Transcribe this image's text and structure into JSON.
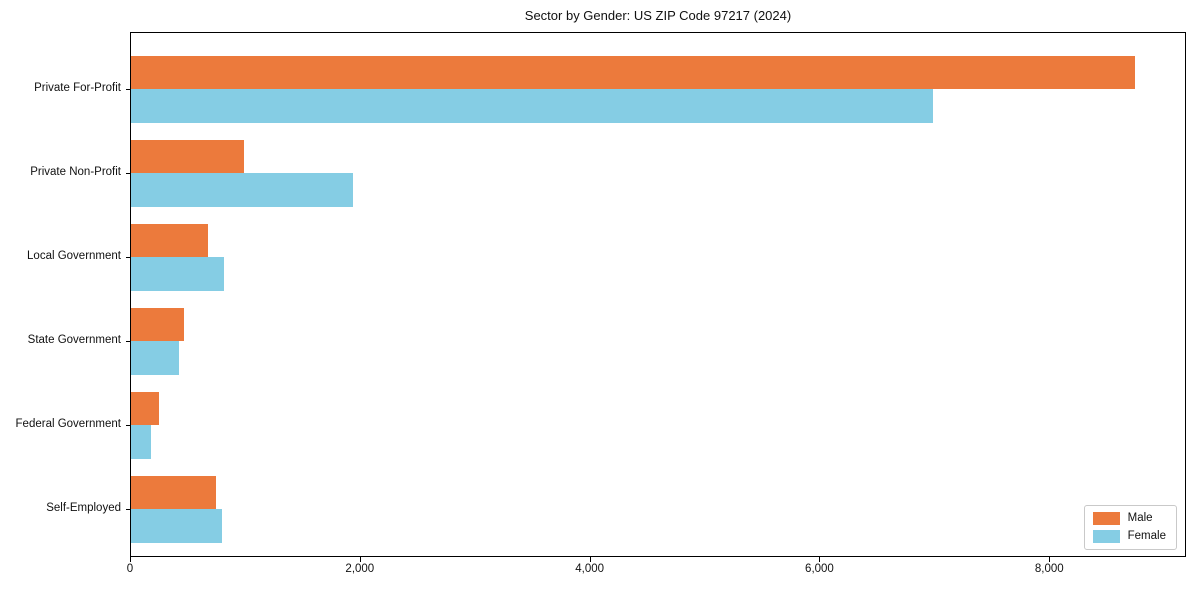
{
  "chart_data": {
    "type": "bar",
    "orientation": "horizontal",
    "title": "Sector by Gender: US ZIP Code 97217 (2024)",
    "categories": [
      "Private For-Profit",
      "Private Non-Profit",
      "Local Government",
      "State Government",
      "Federal Government",
      "Self-Employed"
    ],
    "series": [
      {
        "name": "Male",
        "color": "#ec7a3c",
        "values": [
          8740,
          980,
          670,
          460,
          240,
          740
        ]
      },
      {
        "name": "Female",
        "color": "#85cde4",
        "values": [
          6980,
          1930,
          810,
          415,
          175,
          790
        ]
      }
    ],
    "x_ticks": [
      0,
      2000,
      4000,
      6000,
      8000
    ],
    "x_tick_labels": [
      "0",
      "2,000",
      "4,000",
      "6,000",
      "8,000"
    ],
    "xlim": [
      0,
      9190
    ],
    "grid": false,
    "legend": {
      "position": "lower right",
      "entries": [
        "Male",
        "Female"
      ]
    },
    "colors": {
      "axis": "#000000",
      "legend_border": "#c9c9c9",
      "background": "#ffffff"
    }
  }
}
